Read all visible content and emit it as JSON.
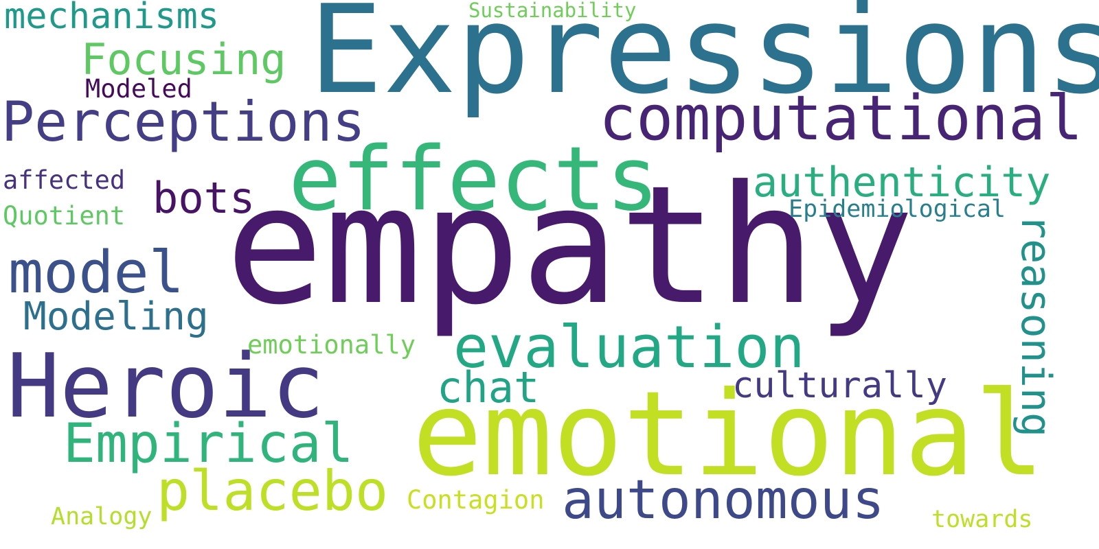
{
  "words": {
    "empathy": {
      "text": "empathy",
      "color": "#481a6c"
    },
    "expressions": {
      "text": "Expressions",
      "color": "#2c728e"
    },
    "emotional": {
      "text": "emotional",
      "color": "#c2df23"
    },
    "effects": {
      "text": "effects",
      "color": "#35b779"
    },
    "heroic": {
      "text": "Heroic",
      "color": "#443983"
    },
    "computational": {
      "text": "computational",
      "color": "#482475"
    },
    "perceptions": {
      "text": "Perceptions",
      "color": "#433e85"
    },
    "evaluation": {
      "text": "evaluation",
      "color": "#22a884"
    },
    "model": {
      "text": "model",
      "color": "#3b518b"
    },
    "empirical": {
      "text": "Empirical",
      "color": "#2fb47c"
    },
    "placebo": {
      "text": "placebo",
      "color": "#bddf26"
    },
    "autonomous": {
      "text": "autonomous",
      "color": "#3e4989"
    },
    "authenticity": {
      "text": "authenticity",
      "color": "#29af7f"
    },
    "reasoning": {
      "text": "reasoning",
      "color": "#21918c"
    },
    "mechanisms": {
      "text": "mechanisms",
      "color": "#1f9a8a"
    },
    "focusing": {
      "text": "Focusing",
      "color": "#5ec962"
    },
    "modeling": {
      "text": "Modeling",
      "color": "#2d708e"
    },
    "bots": {
      "text": "bots",
      "color": "#471365"
    },
    "chat": {
      "text": "chat",
      "color": "#20a486"
    },
    "culturally": {
      "text": "culturally",
      "color": "#443a83"
    },
    "emotionally": {
      "text": "emotionally",
      "color": "#6ece58"
    },
    "modeled": {
      "text": "Modeled",
      "color": "#450a5c"
    },
    "affected": {
      "text": "affected",
      "color": "#46327e"
    },
    "quotient": {
      "text": "Quotient",
      "color": "#5ec962"
    },
    "epidemiological": {
      "text": "Epidemiological",
      "color": "#277f8e"
    },
    "contagion": {
      "text": "Contagion",
      "color": "#c8e020"
    },
    "analogy": {
      "text": "Analogy",
      "color": "#b5de2b"
    },
    "towards": {
      "text": "towards",
      "color": "#bddf26"
    },
    "sustainability": {
      "text": "Sustainability",
      "color": "#6ece58"
    }
  }
}
